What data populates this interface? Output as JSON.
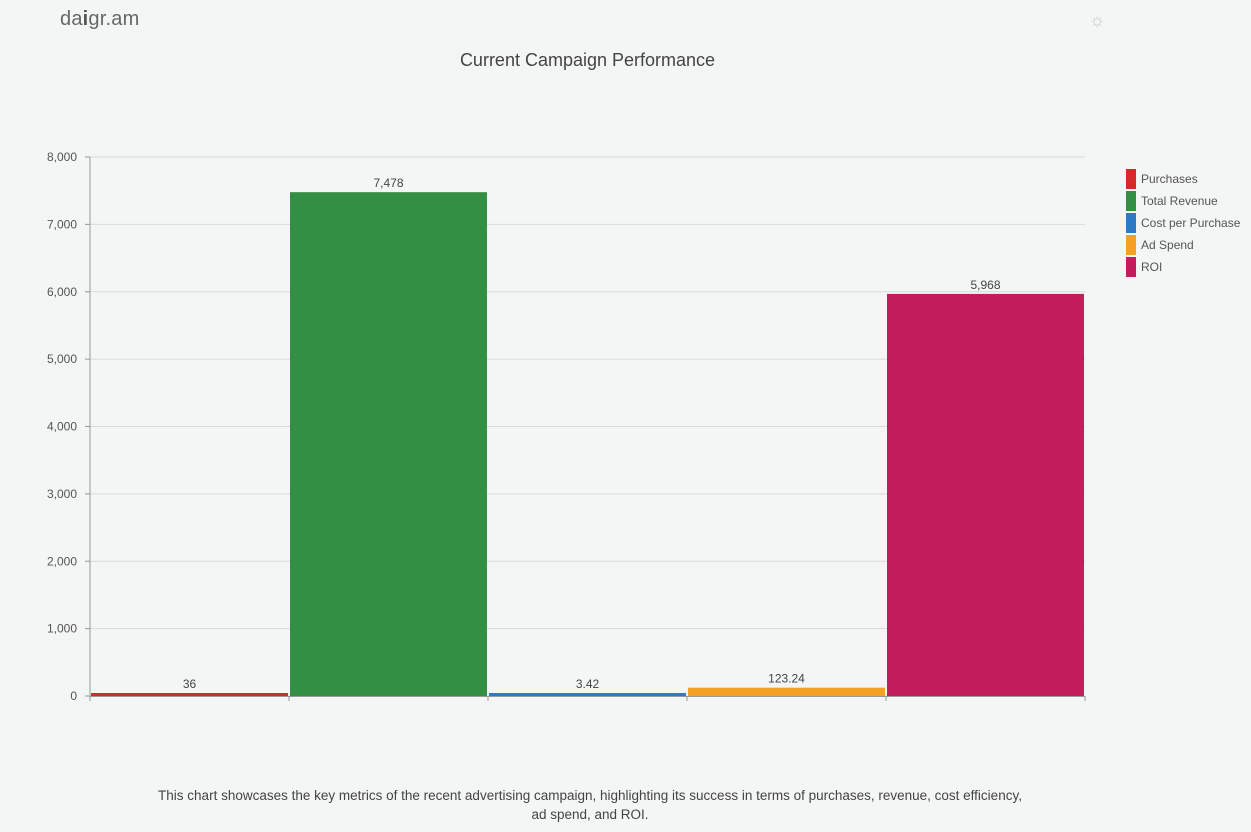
{
  "app": {
    "logo_prefix": "da",
    "logo_bold": "i",
    "logo_suffix": "gr.am",
    "theme_icon": "sun-icon"
  },
  "caption": "This chart showcases the key metrics of the recent advertising campaign, highlighting its success in terms of purchases, revenue, cost efficiency, ad spend, and ROI.",
  "chart_data": {
    "type": "bar",
    "title": "Current Campaign Performance",
    "categories": [
      "Purchases",
      "Total Revenue",
      "Cost per Purchase",
      "Ad Spend",
      "ROI"
    ],
    "values": [
      36,
      7478,
      3.42,
      123.24,
      5968
    ],
    "data_labels": [
      "36",
      "7,478",
      "3.42",
      "123.24",
      "5,968"
    ],
    "colors": [
      "#d62a2a",
      "#338f43",
      "#2f7ac4",
      "#f3a024",
      "#c41d5e"
    ],
    "ylim": [
      0,
      8000
    ],
    "yticks": [
      0,
      1000,
      2000,
      3000,
      4000,
      5000,
      6000,
      7000,
      8000
    ],
    "ytick_labels": [
      "0",
      "1,000",
      "2,000",
      "3,000",
      "4,000",
      "5,000",
      "6,000",
      "7,000",
      "8,000"
    ],
    "xlabel": "",
    "ylabel": "",
    "grid": true,
    "legend": "right"
  }
}
